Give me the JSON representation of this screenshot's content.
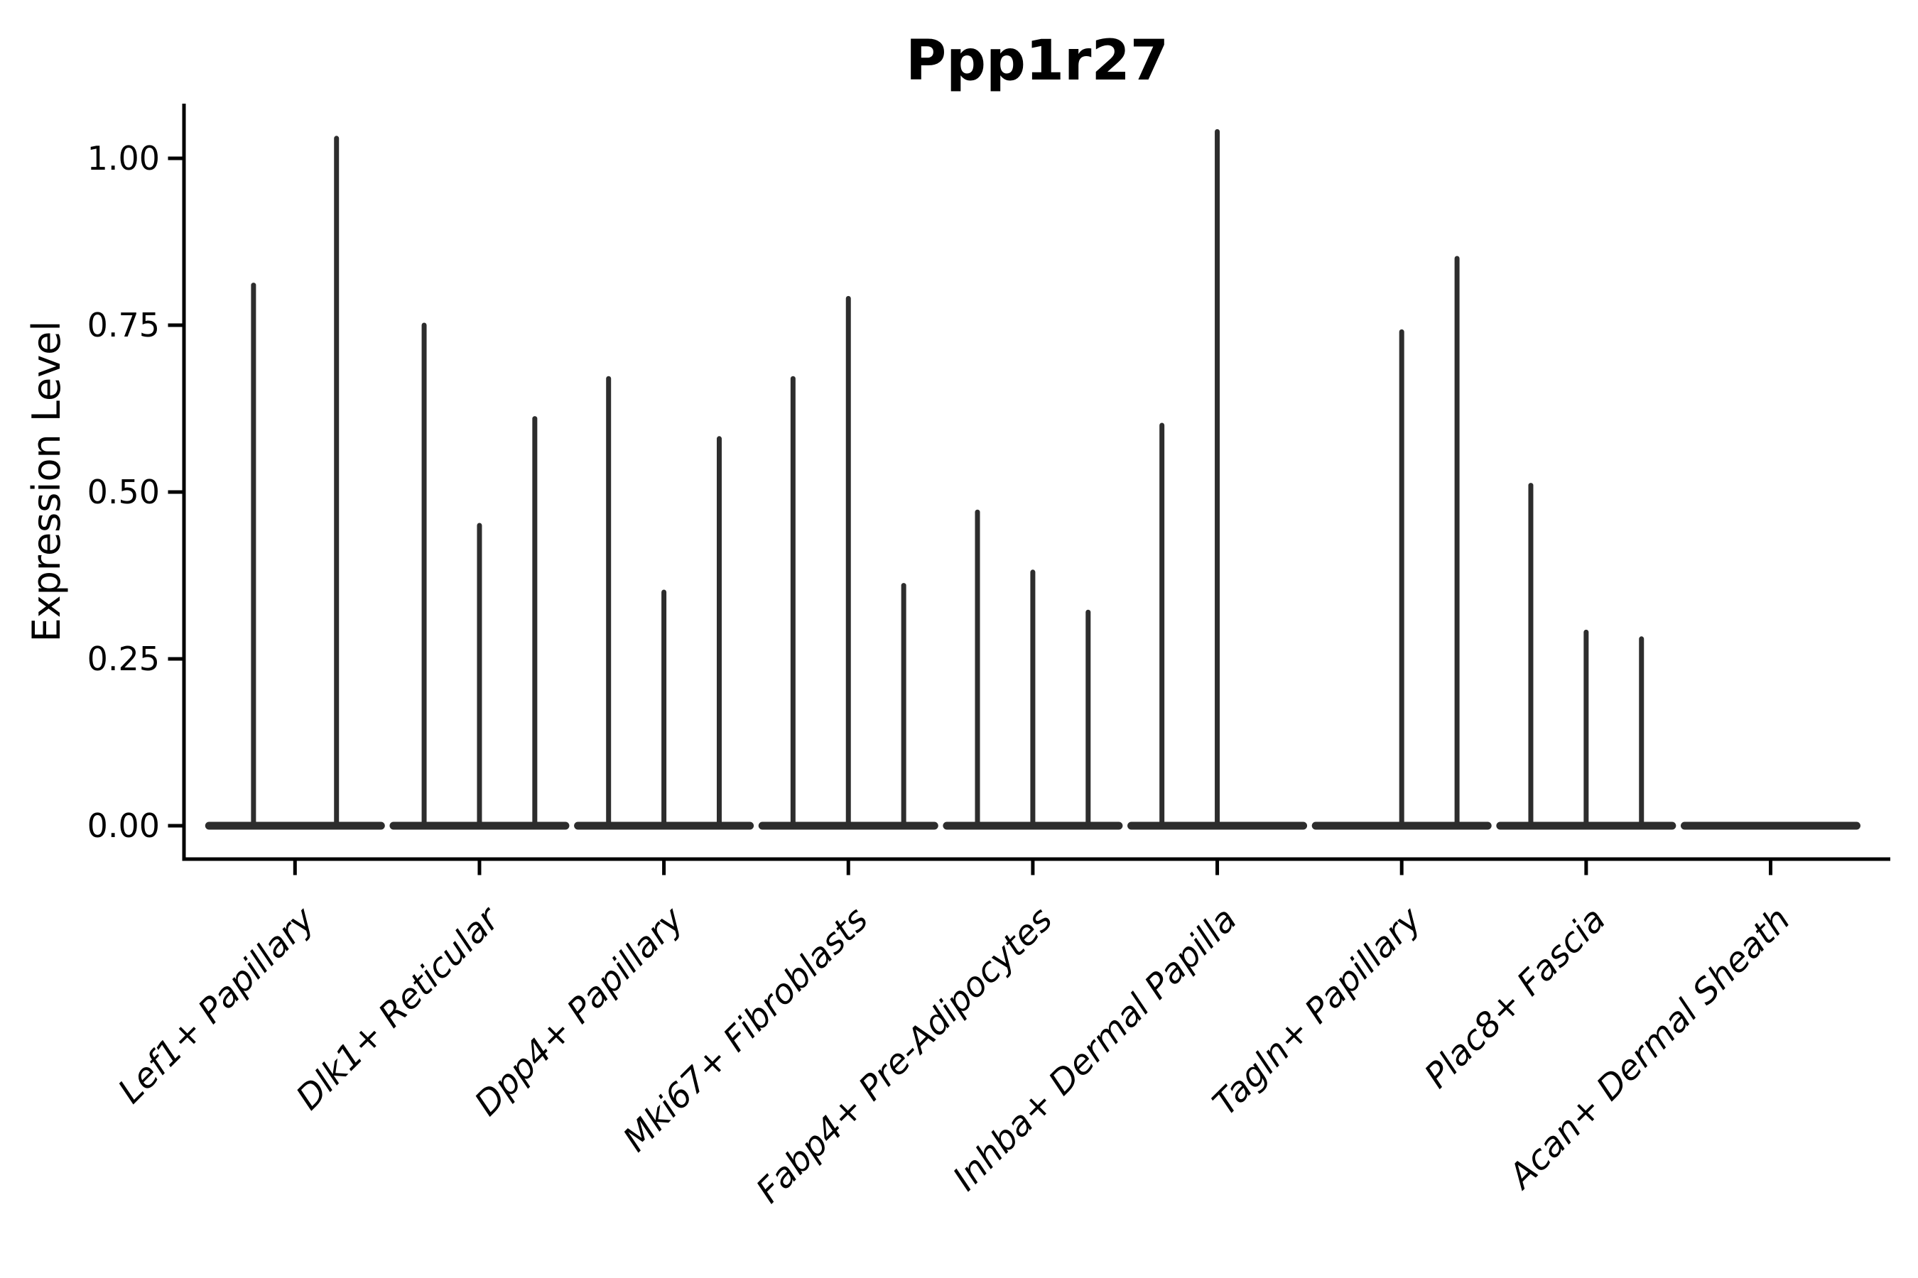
{
  "figure": {
    "title": "Ppp1r27",
    "ylabel": "Expression Level"
  },
  "chart_data": {
    "type": "violin",
    "title": "Ppp1r27",
    "xlabel": "",
    "ylabel": "Expression Level",
    "ylim": [
      -0.05,
      1.08
    ],
    "yticks": [
      {
        "label": "0.00",
        "value": 0.0
      },
      {
        "label": "0.25",
        "value": 0.25
      },
      {
        "label": "0.50",
        "value": 0.5
      },
      {
        "label": "0.75",
        "value": 0.75
      },
      {
        "label": "1.00",
        "value": 1.0
      }
    ],
    "grid": false,
    "legend_position": "none",
    "style": {
      "background": "#ffffff",
      "violin_color": "#2d2d2d",
      "axis_color": "#000000",
      "text_color": "#000000",
      "x_labels_italic": true,
      "x_label_rotation_deg": 45
    },
    "description": "Needle-thin violin plot of Ppp1r27 expression per fibroblast cluster; each category shows a flat baseline violin body at 0 with thin spikes reaching the max expression value; dodge positions are fractions of the category slot width.",
    "categories": [
      {
        "label": "Lef1+ Papillary",
        "violins": [
          {
            "pos": -0.225,
            "max": 0.81
          },
          {
            "pos": 0.225,
            "max": 1.03
          }
        ]
      },
      {
        "label": "Dlk1+ Reticular",
        "violins": [
          {
            "pos": -0.3,
            "max": 0.75
          },
          {
            "pos": 0.0,
            "max": 0.45
          },
          {
            "pos": 0.3,
            "max": 0.61
          }
        ]
      },
      {
        "label": "Dpp4+ Papillary",
        "violins": [
          {
            "pos": -0.3,
            "max": 0.67
          },
          {
            "pos": 0.0,
            "max": 0.35
          },
          {
            "pos": 0.3,
            "max": 0.58
          }
        ]
      },
      {
        "label": "Mki67+ Fibroblasts",
        "violins": [
          {
            "pos": -0.3,
            "max": 0.67
          },
          {
            "pos": 0.0,
            "max": 0.79
          },
          {
            "pos": 0.3,
            "max": 0.36
          }
        ]
      },
      {
        "label": "Fabp4+ Pre-Adipocytes",
        "violins": [
          {
            "pos": -0.3,
            "max": 0.47
          },
          {
            "pos": 0.0,
            "max": 0.38
          },
          {
            "pos": 0.3,
            "max": 0.32
          }
        ]
      },
      {
        "label": "Inhba+ Dermal Papilla",
        "violins": [
          {
            "pos": -0.3,
            "max": 0.6
          },
          {
            "pos": 0.0,
            "max": 1.04
          }
        ]
      },
      {
        "label": "Tagln+ Papillary",
        "violins": [
          {
            "pos": 0.0,
            "max": 0.74
          },
          {
            "pos": 0.3,
            "max": 0.85
          }
        ]
      },
      {
        "label": "Plac8+ Fascia",
        "violins": [
          {
            "pos": -0.3,
            "max": 0.51
          },
          {
            "pos": 0.0,
            "max": 0.29
          },
          {
            "pos": 0.3,
            "max": 0.28
          }
        ]
      },
      {
        "label": "Acan+ Dermal Sheath",
        "violins": []
      }
    ]
  }
}
